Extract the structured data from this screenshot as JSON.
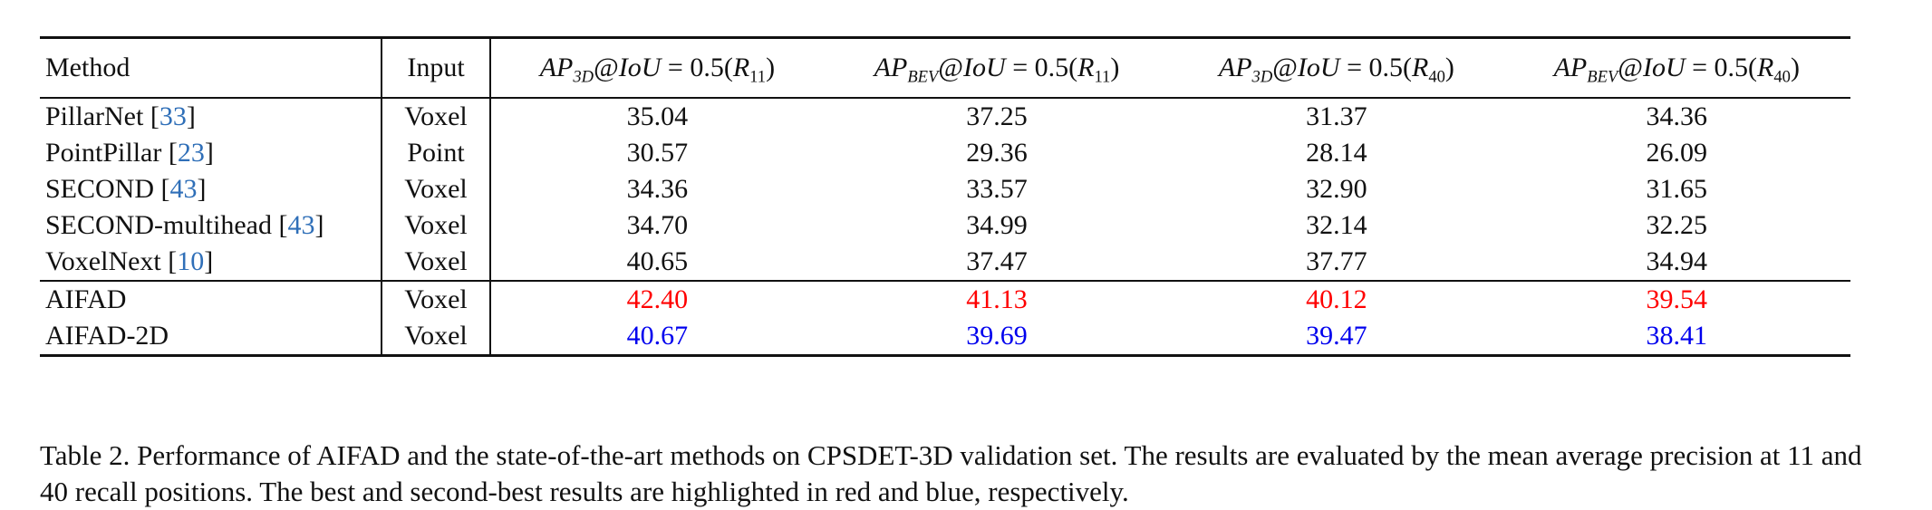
{
  "table": {
    "headers": {
      "method": "Method",
      "input": "Input",
      "metrics": [
        {
          "base": "AP",
          "sub": "3D",
          "iou": "IoU",
          "eq": " = 0.5(",
          "r": "R",
          "rsub": "11",
          "close": ")"
        },
        {
          "base": "AP",
          "sub": "BEV",
          "iou": "IoU",
          "eq": " = 0.5(",
          "r": "R",
          "rsub": "11",
          "close": ")"
        },
        {
          "base": "AP",
          "sub": "3D",
          "iou": "IoU",
          "eq": " = 0.5(",
          "r": "R",
          "rsub": "40",
          "close": ")"
        },
        {
          "base": "AP",
          "sub": "BEV",
          "iou": "IoU",
          "eq": " = 0.5(",
          "r": "R",
          "rsub": "40",
          "close": ")"
        }
      ]
    },
    "baselines": [
      {
        "method": "PillarNet",
        "cite": "33",
        "input": "Voxel",
        "values": [
          "35.04",
          "37.25",
          "31.37",
          "34.36"
        ]
      },
      {
        "method": "PointPillar",
        "cite": "23",
        "input": "Point",
        "values": [
          "30.57",
          "29.36",
          "28.14",
          "26.09"
        ]
      },
      {
        "method": "SECOND",
        "cite": "43",
        "input": "Voxel",
        "values": [
          "34.36",
          "33.57",
          "32.90",
          "31.65"
        ]
      },
      {
        "method": "SECOND-multihead",
        "cite": "43",
        "input": "Voxel",
        "values": [
          "34.70",
          "34.99",
          "32.14",
          "32.25"
        ]
      },
      {
        "method": "VoxelNext",
        "cite": "10",
        "input": "Voxel",
        "values": [
          "40.65",
          "37.47",
          "37.77",
          "34.94"
        ]
      }
    ],
    "ours": [
      {
        "method": "AIFAD",
        "input": "Voxel",
        "values": [
          "42.40",
          "41.13",
          "40.12",
          "39.54"
        ],
        "rank": "best"
      },
      {
        "method": "AIFAD-2D",
        "input": "Voxel",
        "values": [
          "40.67",
          "39.69",
          "39.47",
          "38.41"
        ],
        "rank": "second"
      }
    ],
    "colors": {
      "best": "#ff0000",
      "second": "#0000ee",
      "cite": "#2f6fb8"
    }
  },
  "caption": "Table 2. Performance of AIFAD and the state-of-the-art methods on CPSDET-3D validation set. The results are evaluated by the mean average precision at 11 and 40 recall positions. The best and second-best results are highlighted in red and blue, respectively."
}
